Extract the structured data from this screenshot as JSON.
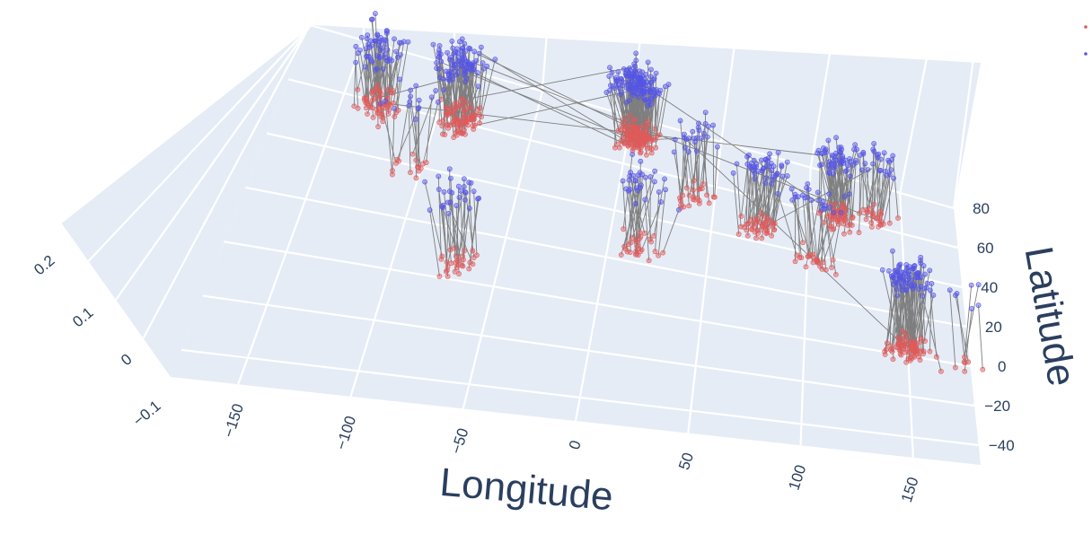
{
  "chart_data": {
    "type": "scatter3d",
    "title": "",
    "xlabel": "Longitude",
    "ylabel": "Latitude",
    "zlabel": "",
    "xlim": [
      -180,
      180
    ],
    "ylim": [
      -50,
      80
    ],
    "zlim": [
      -0.1,
      0.2
    ],
    "x_ticks": [
      "−150",
      "−100",
      "−50",
      "0",
      "50",
      "100",
      "150"
    ],
    "y_ticks": [
      "−40",
      "−20",
      "0",
      "20",
      "40",
      "60",
      "80"
    ],
    "z_ticks": [
      "−0.1",
      "0",
      "0.1",
      "0.2"
    ],
    "grid": true,
    "legend_position": "top-right",
    "series": [
      {
        "color": "#e05a5a",
        "marker": "point",
        "level": 0
      },
      {
        "color": "#5555e6",
        "marker": "point",
        "level": 0.1
      }
    ],
    "connector_color": "#7f7f7f",
    "clusters": [
      {
        "region": "north-america-west",
        "lon": -122,
        "lat": 40,
        "n": 60
      },
      {
        "region": "north-america-east",
        "lon": -80,
        "lat": 40,
        "n": 90
      },
      {
        "region": "central-america",
        "lon": -95,
        "lat": 18,
        "n": 15
      },
      {
        "region": "south-america",
        "lon": -60,
        "lat": -20,
        "n": 30
      },
      {
        "region": "europe",
        "lon": 10,
        "lat": 50,
        "n": 140
      },
      {
        "region": "middle-east",
        "lon": 45,
        "lat": 28,
        "n": 25
      },
      {
        "region": "africa",
        "lon": 20,
        "lat": 0,
        "n": 30
      },
      {
        "region": "south-asia",
        "lon": 78,
        "lat": 20,
        "n": 45
      },
      {
        "region": "east-asia",
        "lon": 118,
        "lat": 33,
        "n": 55
      },
      {
        "region": "japan-korea",
        "lon": 135,
        "lat": 37,
        "n": 25
      },
      {
        "region": "southeast-asia",
        "lon": 105,
        "lat": 8,
        "n": 25
      },
      {
        "region": "australia",
        "lon": 148,
        "lat": -32,
        "n": 80
      },
      {
        "region": "new-zealand",
        "lon": 174,
        "lat": -40,
        "n": 8
      }
    ]
  }
}
